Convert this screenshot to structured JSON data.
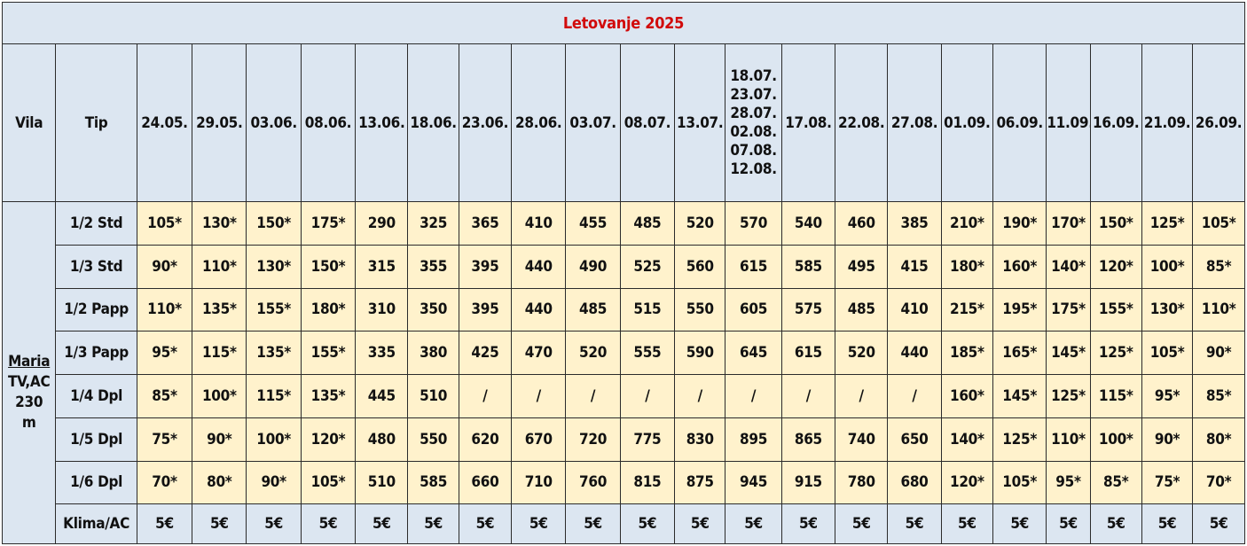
{
  "title": "Letovanje 2025",
  "headers": {
    "vila": "Vila",
    "tip": "Tip",
    "dates": [
      "24.05.",
      "29.05.",
      "03.06.",
      "08.06.",
      "13.06.",
      "18.06.",
      "23.06.",
      "28.06.",
      "03.07.",
      "08.07.",
      "13.07.",
      "18.07.\n23.07.\n28.07.\n02.08.\n07.08.\n12.08.",
      "17.08.",
      "22.08.",
      "27.08.",
      "01.09.",
      "06.09.",
      "11.09.",
      "16.09.",
      "21.09.",
      "26.09."
    ]
  },
  "villa": {
    "name": "Maria",
    "amenities": "TV,AC",
    "distance": "230",
    "unit": "m"
  },
  "rows": [
    {
      "type": "1/2 Std",
      "prices": [
        "105*",
        "130*",
        "150*",
        "175*",
        "290",
        "325",
        "365",
        "410",
        "455",
        "485",
        "520",
        "570",
        "540",
        "460",
        "385",
        "210*",
        "190*",
        "170*",
        "150*",
        "125*",
        "105*"
      ]
    },
    {
      "type": "1/3 Std",
      "prices": [
        "90*",
        "110*",
        "130*",
        "150*",
        "315",
        "355",
        "395",
        "440",
        "490",
        "525",
        "560",
        "615",
        "585",
        "495",
        "415",
        "180*",
        "160*",
        "140*",
        "120*",
        "100*",
        "85*"
      ]
    },
    {
      "type": "1/2 Papp",
      "prices": [
        "110*",
        "135*",
        "155*",
        "180*",
        "310",
        "350",
        "395",
        "440",
        "485",
        "515",
        "550",
        "605",
        "575",
        "485",
        "410",
        "215*",
        "195*",
        "175*",
        "155*",
        "130*",
        "110*"
      ]
    },
    {
      "type": "1/3 Papp",
      "prices": [
        "95*",
        "115*",
        "135*",
        "155*",
        "335",
        "380",
        "425",
        "470",
        "520",
        "555",
        "590",
        "645",
        "615",
        "520",
        "440",
        "185*",
        "165*",
        "145*",
        "125*",
        "105*",
        "90*"
      ]
    },
    {
      "type": "1/4 Dpl",
      "prices": [
        "85*",
        "100*",
        "115*",
        "135*",
        "445",
        "510",
        "/",
        "/",
        "/",
        "/",
        "/",
        "/",
        "/",
        "/",
        "/",
        "160*",
        "145*",
        "125*",
        "115*",
        "95*",
        "85*"
      ]
    },
    {
      "type": "1/5 Dpl",
      "prices": [
        "75*",
        "90*",
        "100*",
        "120*",
        "480",
        "550",
        "620",
        "670",
        "720",
        "775",
        "830",
        "895",
        "865",
        "740",
        "650",
        "140*",
        "125*",
        "110*",
        "100*",
        "90*",
        "80*"
      ]
    },
    {
      "type": "1/6 Dpl",
      "prices": [
        "70*",
        "80*",
        "90*",
        "105*",
        "510",
        "585",
        "660",
        "710",
        "760",
        "815",
        "875",
        "945",
        "915",
        "780",
        "680",
        "120*",
        "105*",
        "95*",
        "85*",
        "75*",
        "70*"
      ]
    }
  ],
  "ac_row": {
    "type": "Klima/AC",
    "prices": [
      "5€",
      "5€",
      "5€",
      "5€",
      "5€",
      "5€",
      "5€",
      "5€",
      "5€",
      "5€",
      "5€",
      "5€",
      "5€",
      "5€",
      "5€",
      "5€",
      "5€",
      "5€",
      "5€",
      "5€",
      "5€"
    ]
  },
  "colors": {
    "header_bg": "#dce6f1",
    "price_bg": "#fff2cc",
    "title_color": "#d10a0a",
    "border": "#2b2b2b"
  }
}
